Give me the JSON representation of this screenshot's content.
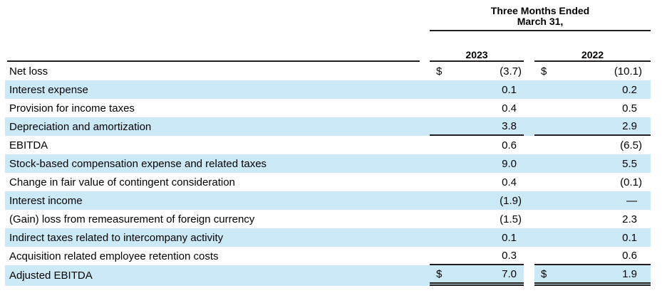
{
  "title": "Adjusted EBITDA reconciliation table",
  "header": {
    "period_line1": "Three Months Ended",
    "period_line2": "March 31,",
    "years": [
      "2023",
      "2022"
    ]
  },
  "colors": {
    "row_shade": "#cce9f8",
    "rule": "#231f20",
    "text": "#000000"
  },
  "rows": [
    {
      "label": "Net loss",
      "currency_2023": "$",
      "value_2023": "(3.7)",
      "currency_2022": "$",
      "value_2022": "(10.1)",
      "shaded": false,
      "rule": "none"
    },
    {
      "label": "Interest expense",
      "currency_2023": "",
      "value_2023": "0.1",
      "currency_2022": "",
      "value_2022": "0.2",
      "shaded": true,
      "rule": "none"
    },
    {
      "label": "Provision for income taxes",
      "currency_2023": "",
      "value_2023": "0.4",
      "currency_2022": "",
      "value_2022": "0.5",
      "shaded": false,
      "rule": "none"
    },
    {
      "label": "Depreciation and amortization",
      "currency_2023": "",
      "value_2023": "3.8",
      "currency_2022": "",
      "value_2022": "2.9",
      "shaded": true,
      "rule": "single"
    },
    {
      "label": "EBITDA",
      "currency_2023": "",
      "value_2023": "0.6",
      "currency_2022": "",
      "value_2022": "(6.5)",
      "shaded": false,
      "rule": "none"
    },
    {
      "label": "Stock-based compensation expense and related taxes",
      "currency_2023": "",
      "value_2023": "9.0",
      "currency_2022": "",
      "value_2022": "5.5",
      "shaded": true,
      "rule": "none"
    },
    {
      "label": "Change in fair value of contingent consideration",
      "currency_2023": "",
      "value_2023": "0.4",
      "currency_2022": "",
      "value_2022": "(0.1)",
      "shaded": false,
      "rule": "none"
    },
    {
      "label": "Interest income",
      "currency_2023": "",
      "value_2023": "(1.9)",
      "currency_2022": "",
      "value_2022": "—",
      "shaded": true,
      "rule": "none"
    },
    {
      "label": "(Gain) loss from remeasurement of foreign currency",
      "currency_2023": "",
      "value_2023": "(1.5)",
      "currency_2022": "",
      "value_2022": "2.3",
      "shaded": false,
      "rule": "none"
    },
    {
      "label": "Indirect taxes related to intercompany activity",
      "currency_2023": "",
      "value_2023": "0.1",
      "currency_2022": "",
      "value_2022": "0.1",
      "shaded": true,
      "rule": "none"
    },
    {
      "label": "Acquisition related employee retention costs",
      "currency_2023": "",
      "value_2023": "0.3",
      "currency_2022": "",
      "value_2022": "0.6",
      "shaded": false,
      "rule": "single"
    },
    {
      "label": "Adjusted EBITDA",
      "currency_2023": "$",
      "value_2023": "7.0",
      "currency_2022": "$",
      "value_2022": "1.9",
      "shaded": true,
      "rule": "double"
    }
  ]
}
